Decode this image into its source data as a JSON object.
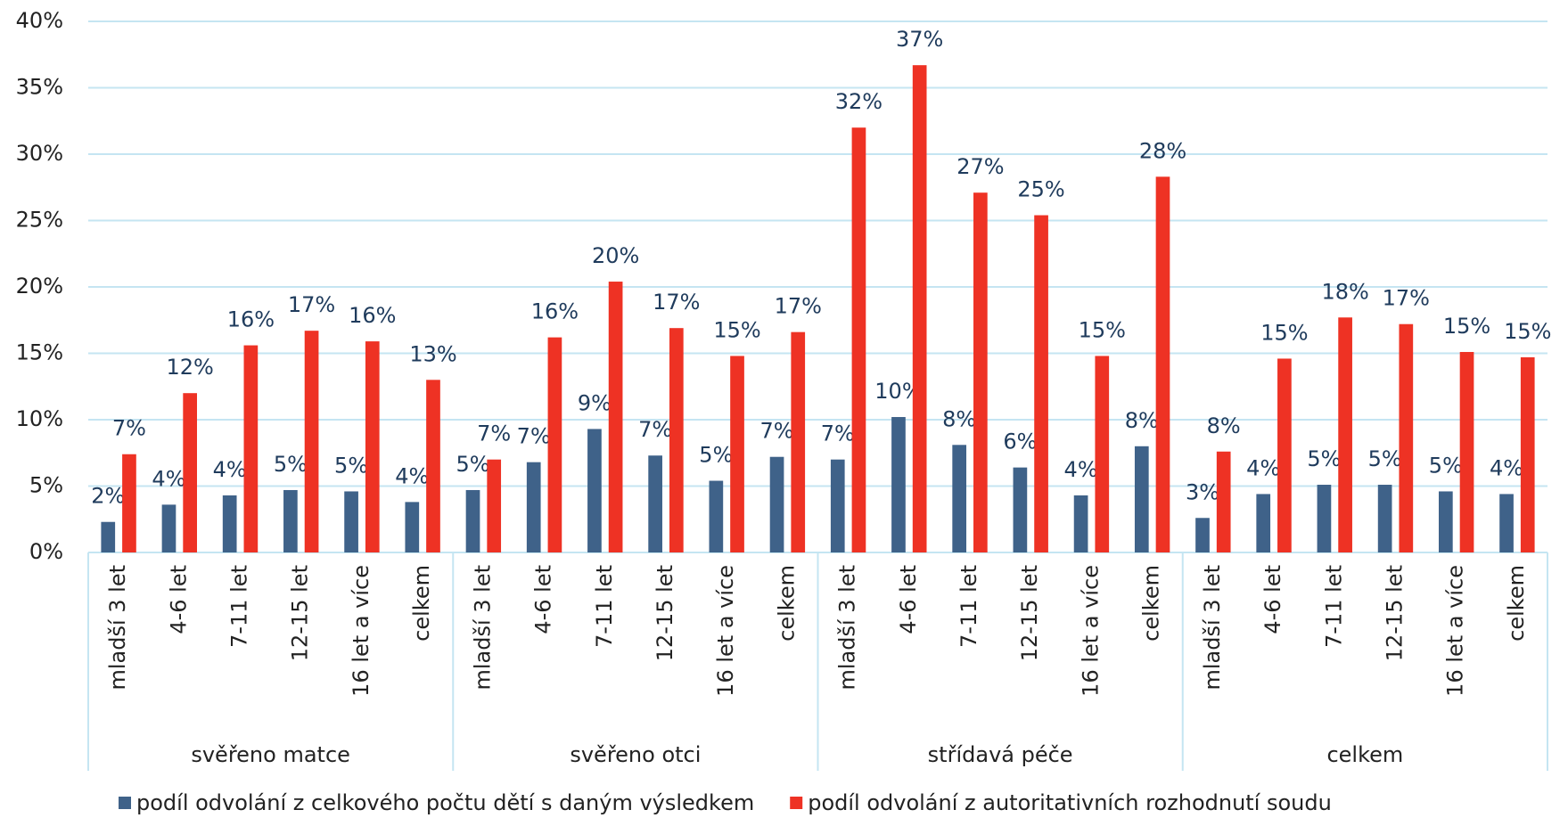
{
  "chart_data": {
    "type": "bar",
    "categories": [
      "mladší 3 let",
      "4-6 let",
      "7-11 let",
      "12-15 let",
      "16 let a více",
      "celkem",
      "mladší 3 let",
      "4-6 let",
      "7-11 let",
      "12-15 let",
      "16 let a více",
      "celkem",
      "mladší 3 let",
      "4-6 let",
      "7-11 let",
      "12-15 let",
      "16 let a více",
      "celkem",
      "mladší 3 let",
      "4-6 let",
      "7-11 let",
      "12-15 let",
      "16 let a více",
      "celkem"
    ],
    "groups": [
      "svěřeno matce",
      "svěřeno otci",
      "střídavá péče",
      "celkem"
    ],
    "series": [
      {
        "name": "podíl odvolání z celkového počtu dětí s daným výsledkem",
        "color": "#3f6289",
        "values": [
          2.3,
          3.6,
          4.3,
          4.7,
          4.6,
          3.8,
          4.7,
          6.8,
          9.3,
          7.3,
          5.4,
          7.2,
          7.0,
          10.2,
          8.1,
          6.4,
          4.3,
          8.0,
          2.6,
          4.4,
          5.1,
          5.1,
          4.6,
          4.4
        ],
        "value_labels": [
          "2%",
          "4%",
          "4%",
          "5%",
          "5%",
          "4%",
          "5%",
          "7%",
          "9%",
          "7%",
          "5%",
          "7%",
          "7%",
          "10%",
          "8%",
          "6%",
          "4%",
          "8%",
          "3%",
          "4%",
          "5%",
          "5%",
          "5%",
          "4%"
        ]
      },
      {
        "name": "podíl odvolání z autoritativních rozhodnutí soudu",
        "color": "#ee3224",
        "values": [
          7.4,
          12.0,
          15.6,
          16.7,
          15.9,
          13.0,
          7.0,
          16.2,
          20.4,
          16.9,
          14.8,
          16.6,
          32.0,
          36.7,
          27.1,
          25.4,
          14.8,
          28.3,
          7.6,
          14.6,
          17.7,
          17.2,
          15.1,
          14.7
        ],
        "value_labels": [
          "7%",
          "12%",
          "16%",
          "17%",
          "16%",
          "13%",
          "7%",
          "16%",
          "20%",
          "17%",
          "15%",
          "17%",
          "32%",
          "37%",
          "27%",
          "25%",
          "15%",
          "28%",
          "8%",
          "15%",
          "18%",
          "17%",
          "15%",
          "15%"
        ]
      }
    ],
    "ylim": [
      0,
      40
    ],
    "yticks": [
      {
        "value": 0,
        "label": "0%"
      },
      {
        "value": 5,
        "label": "5%"
      },
      {
        "value": 10,
        "label": "10%"
      },
      {
        "value": 15,
        "label": "15%"
      },
      {
        "value": 20,
        "label": "20%"
      },
      {
        "value": 25,
        "label": "25%"
      },
      {
        "value": 30,
        "label": "30%"
      },
      {
        "value": 35,
        "label": "35%"
      },
      {
        "value": 40,
        "label": "40%"
      }
    ],
    "grid": true,
    "legend": "bottom"
  }
}
